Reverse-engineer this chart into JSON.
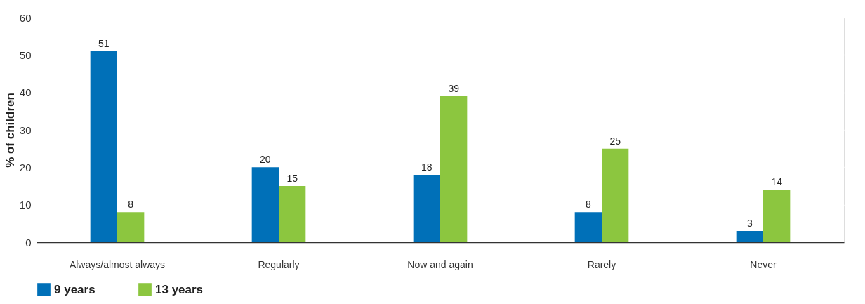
{
  "chart_data": {
    "type": "bar",
    "ylabel": "% of children",
    "categories": [
      "Always/almost always",
      "Regularly",
      "Now and again",
      "Rarely",
      "Never"
    ],
    "series": [
      {
        "name": "9 years",
        "color": "#0070b8",
        "values": [
          51,
          20,
          18,
          8,
          3
        ]
      },
      {
        "name": "13 years",
        "color": "#8cc63f",
        "values": [
          8,
          15,
          39,
          25,
          14
        ]
      }
    ],
    "ylim": [
      0,
      60
    ],
    "yticks": [
      0,
      10,
      20,
      30,
      40,
      50,
      60
    ],
    "grid": "y",
    "legend": "bottom",
    "data_labels": true
  }
}
